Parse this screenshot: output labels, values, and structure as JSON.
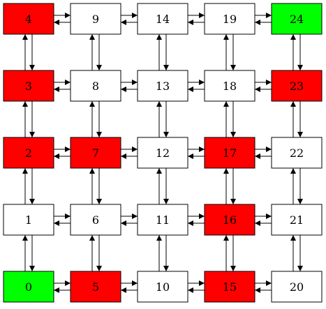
{
  "graph": {
    "nodes": [
      {
        "id": "0",
        "label": "0",
        "fill": "#00ff00"
      },
      {
        "id": "1",
        "label": "1",
        "fill": "#ffffff"
      },
      {
        "id": "2",
        "label": "2",
        "fill": "#ff0000"
      },
      {
        "id": "3",
        "label": "3",
        "fill": "#ff0000"
      },
      {
        "id": "4",
        "label": "4",
        "fill": "#ff0000"
      },
      {
        "id": "5",
        "label": "5",
        "fill": "#ff0000"
      },
      {
        "id": "6",
        "label": "6",
        "fill": "#ffffff"
      },
      {
        "id": "7",
        "label": "7",
        "fill": "#ff0000"
      },
      {
        "id": "8",
        "label": "8",
        "fill": "#ffffff"
      },
      {
        "id": "9",
        "label": "9",
        "fill": "#ffffff"
      },
      {
        "id": "10",
        "label": "10",
        "fill": "#ffffff"
      },
      {
        "id": "11",
        "label": "11",
        "fill": "#ffffff"
      },
      {
        "id": "12",
        "label": "12",
        "fill": "#ffffff"
      },
      {
        "id": "13",
        "label": "13",
        "fill": "#ffffff"
      },
      {
        "id": "14",
        "label": "14",
        "fill": "#ffffff"
      },
      {
        "id": "15",
        "label": "15",
        "fill": "#ff0000"
      },
      {
        "id": "16",
        "label": "16",
        "fill": "#ff0000"
      },
      {
        "id": "17",
        "label": "17",
        "fill": "#ff0000"
      },
      {
        "id": "18",
        "label": "18",
        "fill": "#ffffff"
      },
      {
        "id": "19",
        "label": "19",
        "fill": "#ffffff"
      },
      {
        "id": "20",
        "label": "20",
        "fill": "#ffffff"
      },
      {
        "id": "21",
        "label": "21",
        "fill": "#ffffff"
      },
      {
        "id": "22",
        "label": "22",
        "fill": "#ffffff"
      },
      {
        "id": "23",
        "label": "23",
        "fill": "#ff0000"
      },
      {
        "id": "24",
        "label": "24",
        "fill": "#00ff00"
      }
    ],
    "edges": "bidirectional grid: each node connects to its right and upper neighbor in both directions"
  }
}
